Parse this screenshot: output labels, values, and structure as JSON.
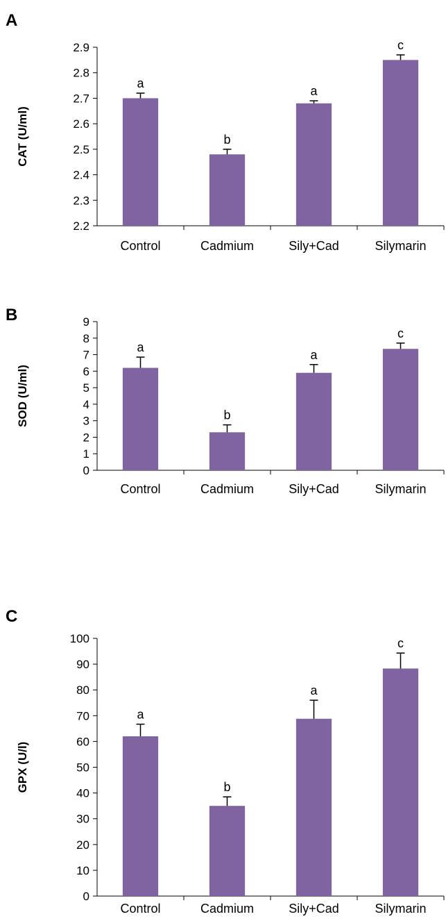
{
  "bar_color": "#8064a2",
  "chart_data": [
    {
      "panel": "A",
      "type": "bar",
      "categories": [
        "Control",
        "Cadmium",
        "Sily+Cad",
        "Silymarin"
      ],
      "values": [
        2.7,
        2.48,
        2.68,
        2.85
      ],
      "errors": [
        0.02,
        0.02,
        0.01,
        0.02
      ],
      "significance": [
        "a",
        "b",
        "a",
        "c"
      ],
      "ylabel": "CAT (U/ml)",
      "ylim": [
        2.2,
        2.9
      ],
      "yticks": [
        "2.2",
        "2.3",
        "2.4",
        "2.5",
        "2.6",
        "2.7",
        "2.8",
        "2.9"
      ],
      "grid": false
    },
    {
      "panel": "B",
      "type": "bar",
      "categories": [
        "Control",
        "Cadmium",
        "Sily+Cad",
        "Silymarin"
      ],
      "values": [
        6.2,
        2.3,
        5.9,
        7.35
      ],
      "errors": [
        0.65,
        0.45,
        0.5,
        0.35
      ],
      "significance": [
        "a",
        "b",
        "a",
        "c"
      ],
      "ylabel": "SOD (U/ml)",
      "ylim": [
        0,
        9
      ],
      "yticks": [
        "0",
        "1",
        "2",
        "3",
        "4",
        "5",
        "6",
        "7",
        "8",
        "9"
      ],
      "grid": false
    },
    {
      "panel": "C",
      "type": "bar",
      "categories": [
        "Control",
        "Cadmium",
        "Sily+Cad",
        "Silymarin"
      ],
      "values": [
        62,
        35,
        68.8,
        88.3
      ],
      "errors": [
        4.7,
        3.5,
        7.2,
        6.0
      ],
      "significance": [
        "a",
        "b",
        "a",
        "c"
      ],
      "ylabel": "GPX (U/l)",
      "ylim": [
        0,
        100
      ],
      "yticks": [
        "0",
        "10",
        "20",
        "30",
        "40",
        "50",
        "60",
        "70",
        "80",
        "90",
        "100"
      ],
      "grid": false
    }
  ]
}
